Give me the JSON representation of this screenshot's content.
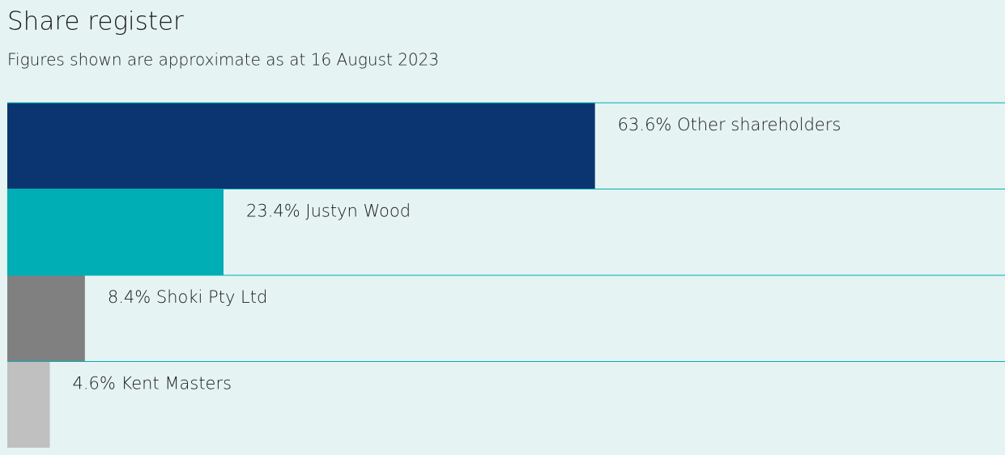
{
  "chart_data": {
    "type": "bar",
    "orientation": "horizontal",
    "title": "Share register",
    "subtitle": "Figures shown are approximate as at 16 August 2023",
    "categories": [
      "Other shareholders",
      "Justyn Wood",
      "Shoki Pty Ltd",
      "Kent Masters"
    ],
    "values": [
      63.6,
      23.4,
      8.4,
      4.6
    ],
    "value_labels": [
      "63.6%",
      "23.4%",
      "8.4%",
      "4.6%"
    ],
    "colors": [
      "#0a3570",
      "#00aeb6",
      "#808080",
      "#c0c0c0"
    ],
    "xlim": [
      0,
      100
    ]
  }
}
